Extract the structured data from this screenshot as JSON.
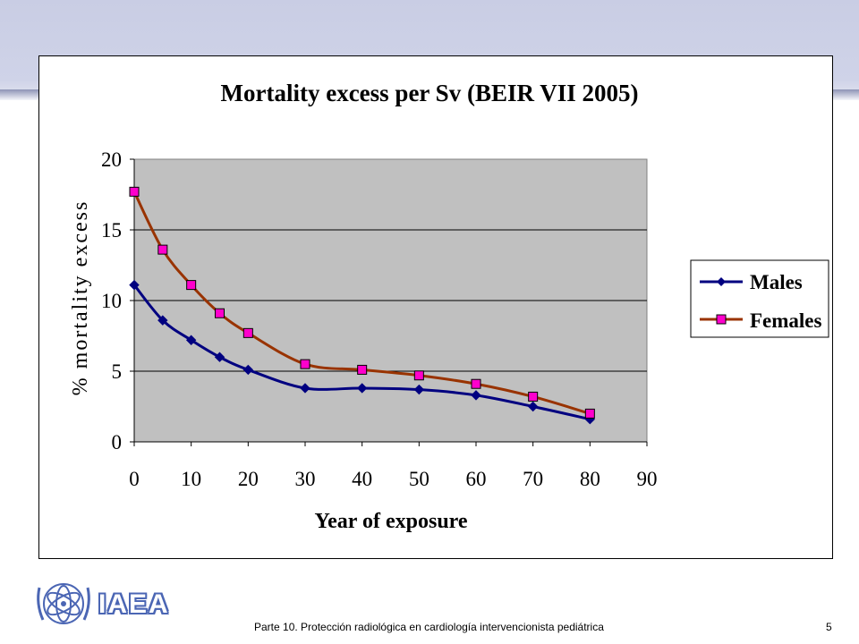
{
  "slide": {
    "footer": "Parte 10. Protección radiológica en cardiología intervencionista pediátrica",
    "page_number": "5",
    "logo_text": "IAEA"
  },
  "colors": {
    "males": "#000080",
    "females": "#993300",
    "females_marker": "#ff00cc",
    "plot_background": "#c0c0c0",
    "band": "#cfd3e8"
  },
  "chart_data": {
    "type": "line",
    "title": "Mortality excess per Sv (BEIR VII 2005)",
    "xlabel": "Year of exposure",
    "ylabel": "% mortality excess",
    "xlim": [
      0,
      90
    ],
    "ylim": [
      0,
      20
    ],
    "xticks": [
      "0",
      "10",
      "20",
      "30",
      "40",
      "50",
      "60",
      "70",
      "80",
      "90"
    ],
    "yticks": [
      "0",
      "5",
      "10",
      "15",
      "20"
    ],
    "grid": "horizontal",
    "legend": "right",
    "series": [
      {
        "name": "Males",
        "marker": "diamond",
        "x": [
          0,
          5,
          10,
          15,
          20,
          30,
          40,
          50,
          60,
          70,
          80
        ],
        "y": [
          11.1,
          8.6,
          7.2,
          6.0,
          5.1,
          3.8,
          3.8,
          3.7,
          3.3,
          2.5,
          1.6
        ]
      },
      {
        "name": "Females",
        "marker": "square",
        "x": [
          0,
          5,
          10,
          15,
          20,
          30,
          40,
          50,
          60,
          70,
          80
        ],
        "y": [
          17.7,
          13.6,
          11.1,
          9.1,
          7.7,
          5.5,
          5.1,
          4.7,
          4.1,
          3.2,
          2.0
        ]
      }
    ]
  }
}
